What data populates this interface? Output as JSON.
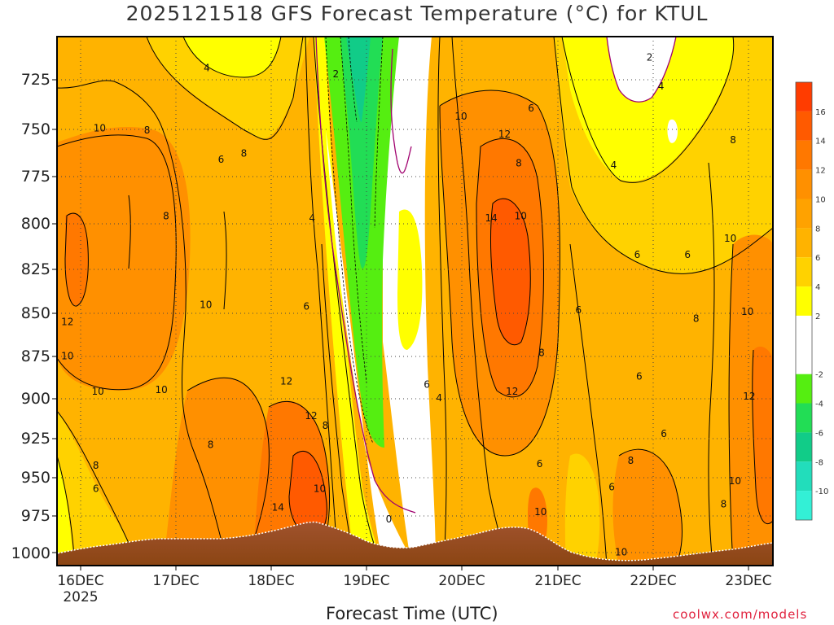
{
  "page": {
    "title": "2025121518 GFS Forecast Temperature (°C) for KTUL",
    "credit": "coolwx.com/models"
  },
  "chart_data": {
    "type": "heatmap",
    "title": "2025121518 GFS Forecast Temperature (°C) for KTUL",
    "xlabel": "Forecast Time (UTC)",
    "ylabel": "",
    "x_ticks": [
      "16DEC",
      "17DEC",
      "18DEC",
      "19DEC",
      "20DEC",
      "21DEC",
      "22DEC",
      "23DEC"
    ],
    "x_year_label": "2025",
    "x_range_days": [
      -0.05,
      7.5
    ],
    "y_ticks": [
      725,
      750,
      775,
      800,
      825,
      850,
      875,
      900,
      925,
      950,
      975,
      1000
    ],
    "y_range_mb": [
      705,
      1008
    ],
    "grid": true,
    "colorbar": {
      "ticks": [
        16,
        14,
        12,
        10,
        8,
        6,
        4,
        2,
        -2,
        -4,
        -6,
        -8,
        -10
      ],
      "levels": [
        {
          "min": 16,
          "max": 18,
          "color": "#ff3c00"
        },
        {
          "min": 14,
          "max": 16,
          "color": "#ff5a00"
        },
        {
          "min": 12,
          "max": 14,
          "color": "#ff7800"
        },
        {
          "min": 10,
          "max": 12,
          "color": "#ff9000"
        },
        {
          "min": 8,
          "max": 10,
          "color": "#ffa200"
        },
        {
          "min": 6,
          "max": 8,
          "color": "#ffb300"
        },
        {
          "min": 4,
          "max": 6,
          "color": "#ffd200"
        },
        {
          "min": 2,
          "max": 4,
          "color": "#ffff00"
        },
        {
          "min": -2,
          "max": 2,
          "color": "#ffffff"
        },
        {
          "min": -4,
          "max": -2,
          "color": "#55ee11"
        },
        {
          "min": -6,
          "max": -4,
          "color": "#22dd55"
        },
        {
          "min": -8,
          "max": -6,
          "color": "#11cc88"
        },
        {
          "min": -10,
          "max": -8,
          "color": "#22ddbb"
        },
        {
          "min": -12,
          "max": -10,
          "color": "#33f0d6"
        }
      ]
    },
    "contour_labels": [
      {
        "t": 0.06,
        "p": 855,
        "text": "12"
      },
      {
        "t": 0.06,
        "p": 875,
        "text": "10"
      },
      {
        "t": 0.4,
        "p": 750,
        "text": "10"
      },
      {
        "t": 0.38,
        "p": 896,
        "text": "10"
      },
      {
        "t": 0.36,
        "p": 942,
        "text": "8"
      },
      {
        "t": 0.36,
        "p": 957,
        "text": "6"
      },
      {
        "t": 1.53,
        "p": 720,
        "text": "4"
      },
      {
        "t": 1.68,
        "p": 766,
        "text": "6"
      },
      {
        "t": 0.9,
        "p": 751,
        "text": "8"
      },
      {
        "t": 1.1,
        "p": 796,
        "text": "8"
      },
      {
        "t": 1.05,
        "p": 895,
        "text": "10"
      },
      {
        "t": 1.57,
        "p": 929,
        "text": "8"
      },
      {
        "t": 1.92,
        "p": 763,
        "text": "8"
      },
      {
        "t": 1.52,
        "p": 845,
        "text": "10"
      },
      {
        "t": 2.37,
        "p": 890,
        "text": "12"
      },
      {
        "t": 2.63,
        "p": 911,
        "text": "12"
      },
      {
        "t": 2.78,
        "p": 917,
        "text": "8"
      },
      {
        "t": 2.58,
        "p": 846,
        "text": "6"
      },
      {
        "t": 2.64,
        "p": 797,
        "text": "4"
      },
      {
        "t": 2.28,
        "p": 969,
        "text": "14"
      },
      {
        "t": 2.72,
        "p": 957,
        "text": "10"
      },
      {
        "t": 2.89,
        "p": 723,
        "text": "2"
      },
      {
        "t": 3.45,
        "p": 977,
        "text": "0"
      },
      {
        "t": 3.85,
        "p": 892,
        "text": "6"
      },
      {
        "t": 3.98,
        "p": 900,
        "text": "4"
      },
      {
        "t": 4.21,
        "p": 744,
        "text": "10"
      },
      {
        "t": 4.67,
        "p": 753,
        "text": "12"
      },
      {
        "t": 4.53,
        "p": 797,
        "text": "14"
      },
      {
        "t": 4.84,
        "p": 796,
        "text": "10"
      },
      {
        "t": 4.82,
        "p": 768,
        "text": "8"
      },
      {
        "t": 4.75,
        "p": 896,
        "text": "12"
      },
      {
        "t": 5.06,
        "p": 873,
        "text": "8"
      },
      {
        "t": 4.95,
        "p": 740,
        "text": "6"
      },
      {
        "t": 5.05,
        "p": 972,
        "text": "10"
      },
      {
        "t": 5.04,
        "p": 941,
        "text": "6"
      },
      {
        "t": 5.45,
        "p": 848,
        "text": "6"
      },
      {
        "t": 5.82,
        "p": 769,
        "text": "4"
      },
      {
        "t": 5.8,
        "p": 956,
        "text": "6"
      },
      {
        "t": 5.9,
        "p": 999,
        "text": "10"
      },
      {
        "t": 6.0,
        "p": 939,
        "text": "8"
      },
      {
        "t": 6.2,
        "p": 715,
        "text": "2"
      },
      {
        "t": 6.07,
        "p": 817,
        "text": "6"
      },
      {
        "t": 6.09,
        "p": 887,
        "text": "6"
      },
      {
        "t": 6.32,
        "p": 729,
        "text": "4"
      },
      {
        "t": 6.35,
        "p": 922,
        "text": "6"
      },
      {
        "t": 6.6,
        "p": 817,
        "text": "6"
      },
      {
        "t": 6.69,
        "p": 853,
        "text": "8"
      },
      {
        "t": 7.08,
        "p": 756,
        "text": "8"
      },
      {
        "t": 7.05,
        "p": 808,
        "text": "10"
      },
      {
        "t": 7.23,
        "p": 849,
        "text": "10"
      },
      {
        "t": 7.25,
        "p": 899,
        "text": "12"
      },
      {
        "t": 6.98,
        "p": 967,
        "text": "8"
      },
      {
        "t": 7.1,
        "p": 952,
        "text": "10"
      }
    ]
  }
}
